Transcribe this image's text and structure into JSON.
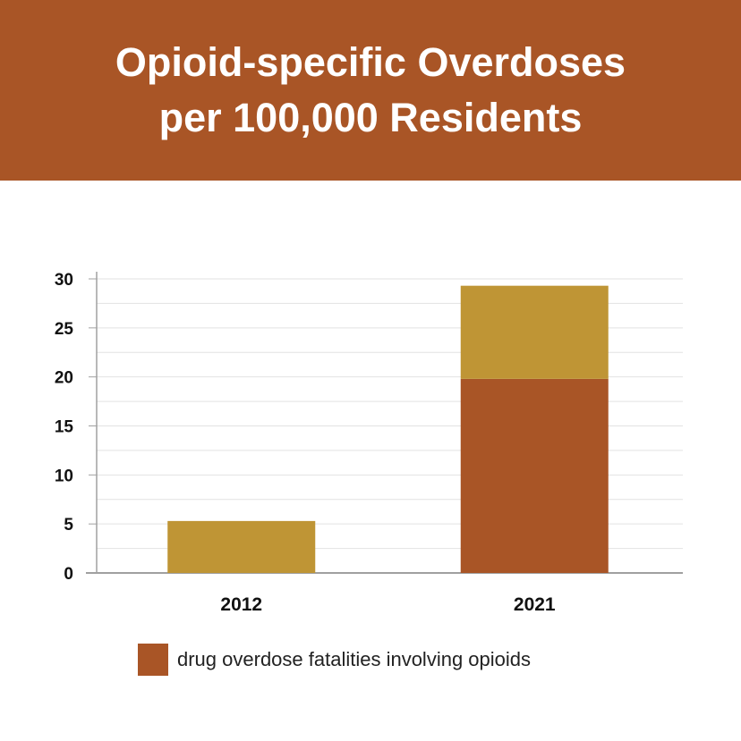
{
  "title": {
    "line1": "Opioid-specific Overdoses",
    "line2": "per 100,000 Residents"
  },
  "colors": {
    "banner": "#a95526",
    "opioid": "#a95526",
    "other": "#bf9535",
    "grid": "#e2e2e2",
    "axis": "#a0a0a0",
    "text": "#111111"
  },
  "chart_data": {
    "type": "bar",
    "stacked": true,
    "categories": [
      "2012",
      "2021"
    ],
    "series": [
      {
        "name": "drug overdose fatalities involving opioids",
        "color": "#a95526",
        "values": [
          0,
          19.8
        ]
      },
      {
        "color": "#bf9535",
        "values": [
          5.3,
          9.5
        ]
      }
    ],
    "ylim": [
      0,
      30
    ],
    "yticks": [
      0,
      5,
      10,
      15,
      20,
      25,
      30
    ],
    "grid": true,
    "legend_position": "bottom-center"
  },
  "legend": {
    "label": "drug overdose fatalities involving opioids"
  }
}
